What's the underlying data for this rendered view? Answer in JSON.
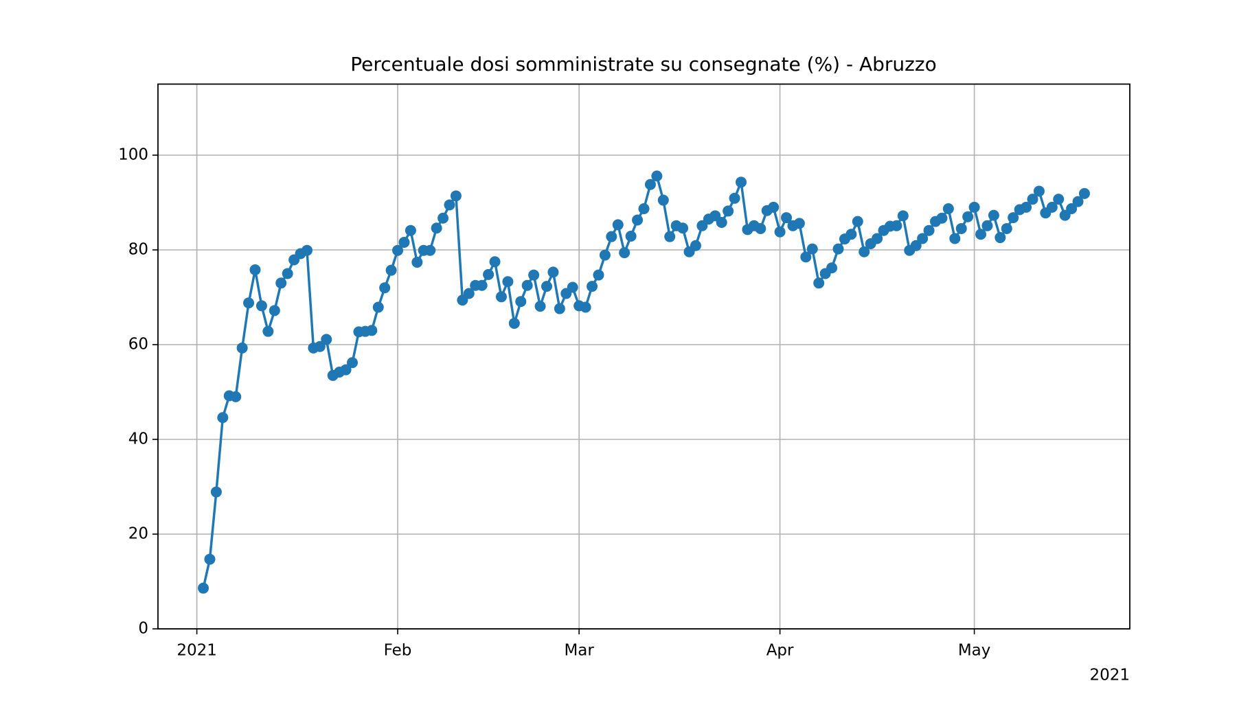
{
  "chart_data": {
    "type": "line",
    "title": "Percentuale dosi somministrate su consegnate (%) - Abruzzo",
    "x_offset_label": "2021",
    "x": [
      "2021-01-02",
      "2021-01-03",
      "2021-01-04",
      "2021-01-05",
      "2021-01-06",
      "2021-01-07",
      "2021-01-08",
      "2021-01-09",
      "2021-01-10",
      "2021-01-11",
      "2021-01-12",
      "2021-01-13",
      "2021-01-14",
      "2021-01-15",
      "2021-01-16",
      "2021-01-17",
      "2021-01-18",
      "2021-01-19",
      "2021-01-20",
      "2021-01-21",
      "2021-01-22",
      "2021-01-23",
      "2021-01-24",
      "2021-01-25",
      "2021-01-26",
      "2021-01-27",
      "2021-01-28",
      "2021-01-29",
      "2021-01-30",
      "2021-01-31",
      "2021-02-01",
      "2021-02-02",
      "2021-02-03",
      "2021-02-04",
      "2021-02-05",
      "2021-02-06",
      "2021-02-07",
      "2021-02-08",
      "2021-02-09",
      "2021-02-10",
      "2021-02-11",
      "2021-02-12",
      "2021-02-13",
      "2021-02-14",
      "2021-02-15",
      "2021-02-16",
      "2021-02-17",
      "2021-02-18",
      "2021-02-19",
      "2021-02-20",
      "2021-02-21",
      "2021-02-22",
      "2021-02-23",
      "2021-02-24",
      "2021-02-25",
      "2021-02-26",
      "2021-02-27",
      "2021-02-28",
      "2021-03-01",
      "2021-03-02",
      "2021-03-03",
      "2021-03-04",
      "2021-03-05",
      "2021-03-06",
      "2021-03-07",
      "2021-03-08",
      "2021-03-09",
      "2021-03-10",
      "2021-03-11",
      "2021-03-12",
      "2021-03-13",
      "2021-03-14",
      "2021-03-15",
      "2021-03-16",
      "2021-03-17",
      "2021-03-18",
      "2021-03-19",
      "2021-03-20",
      "2021-03-21",
      "2021-03-22",
      "2021-03-23",
      "2021-03-24",
      "2021-03-25",
      "2021-03-26",
      "2021-03-27",
      "2021-03-28",
      "2021-03-29",
      "2021-03-30",
      "2021-03-31",
      "2021-04-01",
      "2021-04-02",
      "2021-04-03",
      "2021-04-04",
      "2021-04-05",
      "2021-04-06",
      "2021-04-07",
      "2021-04-08",
      "2021-04-09",
      "2021-04-10",
      "2021-04-11",
      "2021-04-12",
      "2021-04-13",
      "2021-04-14",
      "2021-04-15",
      "2021-04-16",
      "2021-04-17",
      "2021-04-18",
      "2021-04-19",
      "2021-04-20",
      "2021-04-21",
      "2021-04-22",
      "2021-04-23",
      "2021-04-24",
      "2021-04-25",
      "2021-04-26",
      "2021-04-27",
      "2021-04-28",
      "2021-04-29",
      "2021-04-30",
      "2021-05-01",
      "2021-05-02",
      "2021-05-03",
      "2021-05-04",
      "2021-05-05",
      "2021-05-06",
      "2021-05-07",
      "2021-05-08",
      "2021-05-09",
      "2021-05-10",
      "2021-05-11",
      "2021-05-12",
      "2021-05-13",
      "2021-05-14",
      "2021-05-15",
      "2021-05-16",
      "2021-05-17",
      "2021-05-18"
    ],
    "series": [
      {
        "color": "#1f77b4",
        "values": [
          8.6,
          14.7,
          28.9,
          44.6,
          49.2,
          49.0,
          59.3,
          68.8,
          75.8,
          68.2,
          62.8,
          67.2,
          73.0,
          75.0,
          77.9,
          79.2,
          79.9,
          59.3,
          59.6,
          61.1,
          53.5,
          54.2,
          54.7,
          56.2,
          62.7,
          62.8,
          63.0,
          67.9,
          72.0,
          75.7,
          79.9,
          81.6,
          84.1,
          77.4,
          79.9,
          79.9,
          84.6,
          86.7,
          89.5,
          91.4,
          69.4,
          70.8,
          72.5,
          72.5,
          74.8,
          77.5,
          70.1,
          73.3,
          64.5,
          69.1,
          72.5,
          74.7,
          68.1,
          72.3,
          75.3,
          67.6,
          70.8,
          72.1,
          68.2,
          67.9,
          72.3,
          74.7,
          78.9,
          82.8,
          85.3,
          79.4,
          82.9,
          86.3,
          88.7,
          93.8,
          95.6,
          90.5,
          82.8,
          85.1,
          84.6,
          79.6,
          80.9,
          85.1,
          86.5,
          87.2,
          85.8,
          88.2,
          90.9,
          94.3,
          84.3,
          85.1,
          84.5,
          88.3,
          89.0,
          83.8,
          86.8,
          85.1,
          85.6,
          78.5,
          80.2,
          73.0,
          75.0,
          76.2,
          80.2,
          82.3,
          83.3,
          86.0,
          79.6,
          81.3,
          82.4,
          84.1,
          85.0,
          85.1,
          87.2,
          79.9,
          80.9,
          82.4,
          84.1,
          86.0,
          86.7,
          88.7,
          82.4,
          84.5,
          87.0,
          89.0,
          83.3,
          85.1,
          87.3,
          82.6,
          84.5,
          86.8,
          88.5,
          89.0,
          90.7,
          92.4,
          87.8,
          89.0,
          90.7,
          87.3,
          88.7,
          90.2,
          91.9
        ]
      }
    ],
    "xlim": [
      "2020-12-26",
      "2021-05-25"
    ],
    "xticks": [
      {
        "value": "2021-01-01",
        "label": "2021"
      },
      {
        "value": "2021-02-01",
        "label": "Feb"
      },
      {
        "value": "2021-03-01",
        "label": "Mar"
      },
      {
        "value": "2021-04-01",
        "label": "Apr"
      },
      {
        "value": "2021-05-01",
        "label": "May"
      }
    ],
    "ylim": [
      0,
      115
    ],
    "yticks": [
      0,
      20,
      40,
      60,
      80,
      100
    ],
    "grid": true,
    "markers": true
  }
}
